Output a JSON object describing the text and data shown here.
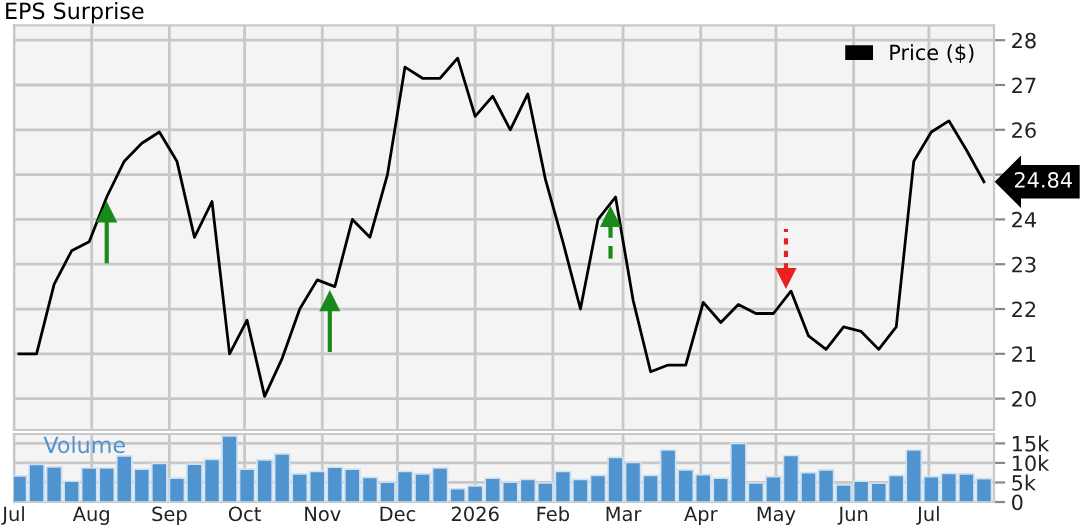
{
  "chart_data": [
    {
      "type": "line",
      "title": "EPS Surprise",
      "legend": "top right",
      "grid": true,
      "tick_labels": "y",
      "x": [
        "2025-07-03",
        "2025-07-10",
        "2025-07-17",
        "2025-07-24",
        "2025-07-31",
        "2025-08-07",
        "2025-08-14",
        "2025-08-21",
        "2025-08-28",
        "2025-09-04",
        "2025-09-11",
        "2025-09-18",
        "2025-09-25",
        "2025-10-02",
        "2025-10-09",
        "2025-10-16",
        "2025-10-23",
        "2025-10-30",
        "2025-11-06",
        "2025-11-13",
        "2025-11-20",
        "2025-11-27",
        "2025-12-04",
        "2025-12-11",
        "2025-12-18",
        "2025-12-25",
        "2026-01-01",
        "2026-01-08",
        "2026-01-15",
        "2026-01-22",
        "2026-01-29",
        "2026-02-05",
        "2026-02-12",
        "2026-02-19",
        "2026-02-26",
        "2026-03-05",
        "2026-03-12",
        "2026-03-19",
        "2026-03-26",
        "2026-04-02",
        "2026-04-09",
        "2026-04-16",
        "2026-04-23",
        "2026-04-30",
        "2026-05-07",
        "2026-05-14",
        "2026-05-21",
        "2026-05-28",
        "2026-06-04",
        "2026-06-11",
        "2026-06-18",
        "2026-06-25",
        "2026-07-02",
        "2026-07-09",
        "2026-07-16",
        "2026-07-23"
      ],
      "xlim": [
        "2025-07-01",
        "2026-07-27"
      ],
      "xticks": [
        {
          "value": "2025-07-01",
          "label": null
        },
        {
          "value": "2025-08-01",
          "label": null
        },
        {
          "value": "2025-09-01",
          "label": null
        },
        {
          "value": "2025-10-01",
          "label": null
        },
        {
          "value": "2025-11-01",
          "label": null
        },
        {
          "value": "2025-12-01",
          "label": null
        },
        {
          "value": "2026-01-01",
          "label": null
        },
        {
          "value": "2026-02-01",
          "label": null
        },
        {
          "value": "2026-03-01",
          "label": null
        },
        {
          "value": "2026-04-01",
          "label": null
        },
        {
          "value": "2026-05-01",
          "label": null
        },
        {
          "value": "2026-06-01",
          "label": null
        },
        {
          "value": "2026-07-01",
          "label": null
        }
      ],
      "ylim": [
        19.3,
        28.33
      ],
      "yticks": [
        20,
        21,
        22,
        23,
        24,
        {
          "value": 25,
          "label": null
        },
        26,
        27,
        28
      ],
      "series": [
        {
          "name": "Price ($)",
          "type": "line",
          "color": "#000000",
          "values": [
            21.0,
            21.0,
            22.55,
            23.3,
            23.5,
            24.5,
            25.3,
            25.7,
            25.95,
            25.3,
            23.6,
            24.4,
            21.0,
            21.75,
            20.05,
            20.9,
            22.0,
            22.65,
            22.5,
            24.0,
            23.6,
            25.0,
            27.4,
            27.15,
            27.15,
            27.6,
            26.3,
            26.75,
            26.0,
            26.8,
            24.9,
            23.5,
            22.0,
            24.0,
            24.5,
            22.2,
            20.6,
            20.75,
            20.75,
            22.15,
            21.7,
            22.1,
            21.9,
            21.9,
            22.4,
            21.4,
            21.1,
            21.6,
            21.5,
            21.1,
            21.6,
            25.3,
            25.95,
            26.2,
            25.55,
            24.84
          ],
          "value_labels": [
            null,
            null,
            null,
            null,
            null,
            null,
            null,
            null,
            null,
            null,
            null,
            null,
            null,
            null,
            null,
            null,
            null,
            null,
            null,
            null,
            null,
            null,
            null,
            null,
            null,
            null,
            null,
            null,
            null,
            null,
            null,
            null,
            null,
            null,
            null,
            null,
            null,
            null,
            null,
            null,
            null,
            null,
            null,
            null,
            null,
            null,
            null,
            null,
            null,
            null,
            null,
            null,
            null,
            null,
            null,
            "24.84"
          ]
        },
        {
          "type": "scatter",
          "color": "#1a8a1a",
          "line_style": "solid",
          "x": [
            "2025-08-07",
            "2025-11-04"
          ],
          "values": [
            24.15,
            22.17
          ]
        },
        {
          "type": "scatter",
          "color": "#1a8a1a",
          "line_style": "dashed",
          "x": [
            "2026-02-24"
          ],
          "values": [
            24.05
          ]
        },
        {
          "type": "scatter",
          "color": "#e8201e",
          "line_style": "dotted",
          "x": [
            "2026-05-05"
          ],
          "values": [
            22.7
          ]
        }
      ]
    },
    {
      "type": "bar",
      "grid": true,
      "x": [
        "2025-07-03",
        "2025-07-10",
        "2025-07-17",
        "2025-07-24",
        "2025-07-31",
        "2025-08-07",
        "2025-08-14",
        "2025-08-21",
        "2025-08-28",
        "2025-09-04",
        "2025-09-11",
        "2025-09-18",
        "2025-09-25",
        "2025-10-02",
        "2025-10-09",
        "2025-10-16",
        "2025-10-23",
        "2025-10-30",
        "2025-11-06",
        "2025-11-13",
        "2025-11-20",
        "2025-11-27",
        "2025-12-04",
        "2025-12-11",
        "2025-12-18",
        "2025-12-25",
        "2026-01-01",
        "2026-01-08",
        "2026-01-15",
        "2026-01-22",
        "2026-01-29",
        "2026-02-05",
        "2026-02-12",
        "2026-02-19",
        "2026-02-26",
        "2026-03-05",
        "2026-03-12",
        "2026-03-19",
        "2026-03-26",
        "2026-04-02",
        "2026-04-09",
        "2026-04-16",
        "2026-04-23",
        "2026-04-30",
        "2026-05-07",
        "2026-05-14",
        "2026-05-21",
        "2026-05-28",
        "2026-06-04",
        "2026-06-11",
        "2026-06-18",
        "2026-06-25",
        "2026-07-02",
        "2026-07-09",
        "2026-07-16",
        "2026-07-23"
      ],
      "xlim": [
        "2025-07-01",
        "2026-07-27"
      ],
      "xticks": [
        {
          "value": "2025-07-01",
          "label": "Jul"
        },
        {
          "value": "2025-08-01",
          "label": "Aug"
        },
        {
          "value": "2025-09-01",
          "label": "Sep"
        },
        {
          "value": "2025-10-01",
          "label": "Oct"
        },
        {
          "value": "2025-11-01",
          "label": "Nov"
        },
        {
          "value": "2025-12-01",
          "label": "Dec"
        },
        {
          "value": "2026-01-01",
          "label": "2026"
        },
        {
          "value": "2026-02-01",
          "label": "Feb"
        },
        {
          "value": "2026-03-01",
          "label": "Mar"
        },
        {
          "value": "2026-04-01",
          "label": "Apr"
        },
        {
          "value": "2026-05-01",
          "label": "May"
        },
        {
          "value": "2026-06-01",
          "label": "Jun"
        },
        {
          "value": "2026-07-01",
          "label": "Jul"
        }
      ],
      "ylim": [
        0,
        17400
      ],
      "yticks": [
        0,
        {
          "value": 5000,
          "label": "5k"
        },
        {
          "value": 10000,
          "label": "10k"
        },
        {
          "value": 15000,
          "label": "15k"
        }
      ],
      "series": [
        {
          "name": "Volume",
          "color": "#4f93cf",
          "values": [
            6700,
            9600,
            9000,
            5300,
            8700,
            8700,
            11800,
            8400,
            9900,
            6100,
            9700,
            10900,
            16900,
            8400,
            10800,
            12300,
            7200,
            7800,
            8900,
            8400,
            6300,
            5100,
            7800,
            7200,
            8700,
            3400,
            4100,
            6100,
            5100,
            5800,
            4900,
            7800,
            5800,
            6800,
            11400,
            10100,
            6800,
            13300,
            8200,
            7000,
            6100,
            15000,
            4900,
            6500,
            11900,
            7500,
            8200,
            4400,
            5300,
            4800,
            6800,
            13300,
            6500,
            7300,
            7200,
            6000
          ]
        }
      ]
    }
  ]
}
